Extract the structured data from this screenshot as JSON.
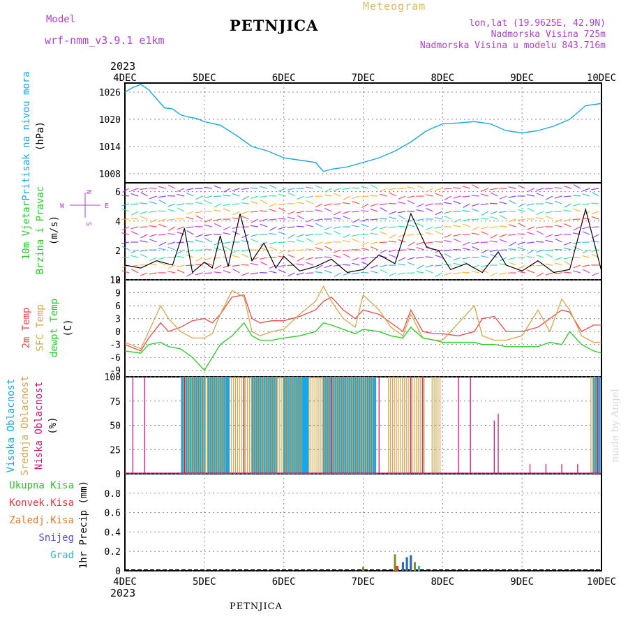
{
  "header": {
    "model_label": "Model",
    "model_name": "wrf-nmm_v3.9.1 e1km",
    "station_title": "PETNJICA",
    "product": "Meteogram",
    "coords": "lon,lat (19.9625E, 42.9N)",
    "elevation": "Nadmorska Visina 725m",
    "model_elevation": "Nadmorska Visina u modelu 843.716m",
    "footer_station": "PETNJICA",
    "watermark": "made by Angel"
  },
  "colors": {
    "pressure": "#1aa6e6",
    "wind_speed_black": "#000000",
    "gust_red": "#e8333a",
    "temp_2m": "#e84a4a",
    "temp_sfc": "#d4a64a",
    "dewpoint": "#22cc22",
    "cloud_high": "#1aa6e6",
    "cloud_mid": "#d4a64a",
    "cloud_low": "#cc1a7a",
    "precip_total": "#22cc22",
    "precip_conv": "#e8333a",
    "precip_frozen": "#e87a22",
    "snow": "#5050e0",
    "hail": "#22c0c0",
    "title_purple": "#b040d0",
    "meteogram_gold": "#e0b860"
  },
  "chart_data": [
    {
      "type": "line",
      "panel": "pressure",
      "title": "",
      "ylabel_lines": [
        "Pritisak na nivou mora",
        "(hPa)"
      ],
      "year": "2023",
      "x_ticks": [
        "4DEC",
        "5DEC",
        "6DEC",
        "7DEC",
        "8DEC",
        "9DEC",
        "10DEC"
      ],
      "ylim": [
        1006,
        1028
      ],
      "y_ticks": [
        1008,
        1014,
        1020,
        1026
      ],
      "series": [
        {
          "x": [
            0,
            0.1,
            0.2,
            0.3,
            0.4,
            0.5,
            0.6,
            0.7,
            0.8,
            0.9,
            1.0,
            1.2,
            1.4,
            1.6,
            1.8,
            2.0,
            2.2,
            2.4,
            2.5,
            2.6,
            2.8,
            3.0,
            3.2,
            3.4,
            3.6,
            3.8,
            4.0,
            4.2,
            4.4,
            4.6,
            4.8,
            5.0,
            5.2,
            5.4,
            5.6,
            5.8,
            6.0
          ],
          "values": [
            1026,
            1027,
            1027.7,
            1026.5,
            1024.5,
            1022.5,
            1022.3,
            1021,
            1020.5,
            1020.2,
            1019.5,
            1018.7,
            1016.5,
            1014,
            1013,
            1011.5,
            1011,
            1010.5,
            1008.5,
            1009,
            1009.5,
            1010.5,
            1011.5,
            1013,
            1015,
            1017.5,
            1019,
            1019.2,
            1019.5,
            1019,
            1017.5,
            1017,
            1017.5,
            1018.5,
            1020,
            1023,
            1023.5
          ]
        }
      ]
    },
    {
      "type": "line",
      "panel": "wind",
      "title": "",
      "ylabel_lines": [
        "10m Vjetar",
        "Brzina i Pravac",
        "(m/s)"
      ],
      "compass": {
        "n": "N",
        "s": "S",
        "w": "W",
        "e": "E"
      },
      "ylim": [
        0,
        6.6
      ],
      "y_ticks": [
        0,
        2,
        4,
        6
      ],
      "series": [
        {
          "name": "",
          "x": [
            0,
            0.2,
            0.4,
            0.6,
            0.75,
            0.85,
            1.0,
            1.1,
            1.2,
            1.3,
            1.45,
            1.6,
            1.75,
            1.9,
            2.0,
            2.2,
            2.4,
            2.6,
            2.8,
            3.0,
            3.2,
            3.4,
            3.6,
            3.8,
            3.95,
            4.1,
            4.3,
            4.5,
            4.7,
            4.8,
            5.0,
            5.2,
            5.4,
            5.6,
            5.8,
            6.0
          ],
          "values": [
            1.0,
            0.8,
            1.3,
            1.0,
            3.5,
            0.5,
            1.2,
            0.8,
            3.0,
            0.9,
            4.5,
            1.3,
            2.5,
            0.8,
            1.6,
            0.6,
            0.9,
            1.4,
            0.5,
            0.7,
            1.7,
            1.1,
            4.5,
            2.2,
            2.0,
            0.7,
            1.1,
            0.5,
            1.9,
            1.0,
            0.6,
            1.3,
            0.5,
            0.7,
            4.8,
            0.6
          ]
        }
      ]
    },
    {
      "type": "line",
      "panel": "temperature",
      "title": "",
      "ylabel_lines": [
        "2m Temp",
        "SFC Temp",
        "dewpt Temp",
        "(C)"
      ],
      "ylim": [
        -10.5,
        12
      ],
      "y_ticks": [
        -9,
        -6,
        -3,
        0,
        3,
        6,
        9,
        12
      ],
      "x": [
        0,
        0.2,
        0.3,
        0.45,
        0.55,
        0.7,
        0.85,
        1.0,
        1.1,
        1.2,
        1.35,
        1.5,
        1.6,
        1.7,
        1.85,
        2.0,
        2.2,
        2.4,
        2.5,
        2.6,
        2.75,
        2.9,
        3.0,
        3.2,
        3.35,
        3.5,
        3.6,
        3.75,
        3.9,
        4.0,
        4.2,
        4.4,
        4.5,
        4.65,
        4.8,
        5.0,
        5.2,
        5.35,
        5.5,
        5.6,
        5.75,
        5.9,
        6.0
      ],
      "series": [
        {
          "name": "2m Temp",
          "values": [
            -3,
            -4.5,
            -1.5,
            2,
            0,
            1,
            2.5,
            3,
            2,
            4,
            8,
            8.5,
            3,
            2,
            2.5,
            2.5,
            3.5,
            5,
            7,
            8,
            5,
            3,
            5,
            4,
            2,
            0,
            5,
            0,
            -0.5,
            -0.5,
            -1,
            0,
            3,
            3.5,
            0,
            0,
            1,
            3,
            5,
            4.5,
            0,
            1.5,
            1.5
          ]
        },
        {
          "name": "SFC Temp",
          "values": [
            -2.5,
            -4,
            0,
            6,
            3,
            0,
            -1.5,
            -1.5,
            -0.5,
            4,
            9.5,
            8,
            0,
            -1,
            0,
            0.5,
            4,
            7,
            10.5,
            7,
            3,
            1,
            8.5,
            5,
            1,
            -1,
            4,
            -1.5,
            -2,
            -2,
            2,
            6,
            -1,
            -2,
            -2,
            -1,
            5,
            0,
            7.5,
            5,
            -1,
            -2.5,
            -2.5
          ]
        },
        {
          "name": "dewpt Temp",
          "values": [
            -4.5,
            -5,
            -3,
            -2.5,
            -3.5,
            -4,
            -6,
            -9,
            -6,
            -3,
            -1,
            2,
            -1,
            -2,
            -2,
            -1.5,
            -1,
            0,
            2,
            1.5,
            0.5,
            -0.5,
            0.5,
            0,
            -1,
            -1.5,
            1,
            -1.5,
            -2,
            -2.5,
            -2.5,
            -2.5,
            -3,
            -3,
            -3.5,
            -3.5,
            -3.5,
            -2.5,
            -3,
            0,
            -3,
            -4.5,
            -5
          ]
        }
      ]
    },
    {
      "type": "bar",
      "panel": "clouds",
      "title": "",
      "ylabel_lines": [
        "Visoka Oblacnost",
        "Srednja Oblacnost",
        "Niska Oblacnost",
        "(%)"
      ],
      "ylim": [
        0,
        100
      ],
      "y_ticks": [
        0,
        25,
        50,
        75,
        100
      ],
      "series": [
        {
          "name": "Visoka Oblacnost",
          "segments": [
            [
              0.72,
              1.0
            ],
            [
              1.05,
              1.3
            ],
            [
              1.6,
              1.9
            ],
            [
              2.0,
              2.3
            ],
            [
              2.5,
              3.15
            ],
            [
              5.9,
              6.0
            ]
          ],
          "values_note": 100
        },
        {
          "name": "Srednja Oblacnost",
          "segments": [
            [
              0.72,
              1.25
            ],
            [
              1.3,
              2.2
            ],
            [
              2.3,
              3.1
            ],
            [
              3.3,
              3.75
            ],
            [
              3.85,
              3.95
            ],
            [
              5.85,
              5.95
            ]
          ],
          "values_note": 100
        },
        {
          "name": "Niska Oblacnost",
          "spikes": [
            [
              0.1,
              100
            ],
            [
              0.25,
              100
            ],
            [
              0.75,
              100
            ],
            [
              1.5,
              100
            ],
            [
              2.6,
              100
            ],
            [
              3.2,
              100
            ],
            [
              3.6,
              100
            ],
            [
              3.75,
              100
            ],
            [
              4.2,
              100
            ],
            [
              4.35,
              100
            ],
            [
              4.65,
              55
            ],
            [
              4.7,
              62
            ],
            [
              5.1,
              10
            ],
            [
              5.3,
              10
            ],
            [
              5.5,
              10
            ],
            [
              5.7,
              10
            ],
            [
              5.95,
              100
            ]
          ]
        }
      ]
    },
    {
      "type": "bar",
      "panel": "precip",
      "title": "",
      "ylabel_lines": [
        "1hr Precip (mm)"
      ],
      "legend": [
        "Ukupna Kisa",
        "Konvek.Kisa",
        "Zaledj.Kisa",
        "Snijeg",
        "Grad"
      ],
      "ylim": [
        0,
        1.0
      ],
      "y_ticks": [
        0,
        0.2,
        0.4,
        0.6,
        0.8
      ],
      "series": [
        {
          "name": "Ukupna Kisa",
          "x": [
            3.0,
            3.4,
            3.42,
            3.5,
            3.55,
            3.6,
            3.65
          ],
          "values": [
            0.04,
            0.17,
            0.05,
            0.09,
            0.14,
            0.16,
            0.09
          ]
        },
        {
          "name": "Konvek.Kisa",
          "x": [
            3.43
          ],
          "values": [
            0.05
          ]
        },
        {
          "name": "Snijeg",
          "x": [
            3.5,
            3.55,
            3.6
          ],
          "values": [
            0.09,
            0.14,
            0.16
          ]
        }
      ],
      "year": "2023",
      "x_ticks": [
        "4DEC",
        "5DEC",
        "6DEC",
        "7DEC",
        "8DEC",
        "9DEC",
        "10DEC"
      ]
    }
  ]
}
